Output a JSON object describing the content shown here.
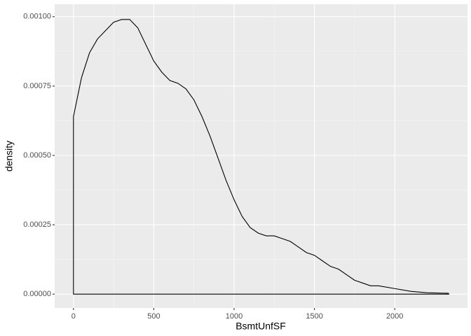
{
  "chart_data": {
    "type": "density",
    "x_label": "BsmtUnfSF",
    "y_label": "density",
    "x": [
      0,
      50,
      100,
      150,
      200,
      250,
      300,
      350,
      400,
      450,
      500,
      550,
      600,
      650,
      700,
      750,
      800,
      850,
      900,
      950,
      1000,
      1050,
      1100,
      1150,
      1200,
      1250,
      1300,
      1350,
      1400,
      1450,
      1500,
      1550,
      1600,
      1650,
      1700,
      1750,
      1800,
      1850,
      1900,
      2000,
      2100,
      2200,
      2336
    ],
    "values": [
      0.00064,
      0.00078,
      0.00087,
      0.00092,
      0.00095,
      0.00098,
      0.00099,
      0.00099,
      0.00096,
      0.0009,
      0.00084,
      0.0008,
      0.00077,
      0.00076,
      0.00074,
      0.0007,
      0.00064,
      0.00057,
      0.00049,
      0.00041,
      0.00034,
      0.00028,
      0.00024,
      0.00022,
      0.00021,
      0.00021,
      0.0002,
      0.00019,
      0.00017,
      0.00015,
      0.00014,
      0.00012,
      0.0001,
      9e-05,
      7e-05,
      5e-05,
      4e-05,
      3e-05,
      3e-05,
      2e-05,
      1e-05,
      5e-06,
      3e-06
    ],
    "color": "#000000",
    "xlim": [
      -117,
      2453
    ],
    "ylim": [
      -5e-05,
      0.001045
    ],
    "xticks": [
      0,
      500,
      1000,
      1500,
      2000
    ],
    "yticks": [
      {
        "value": 0,
        "label": "0.00000"
      },
      {
        "value": 0.00025,
        "label": "0.00025"
      },
      {
        "value": 0.0005,
        "label": "0.00050"
      },
      {
        "value": 0.00075,
        "label": "0.00075"
      },
      {
        "value": 0.001,
        "label": "0.00100"
      }
    ],
    "grid": true
  }
}
